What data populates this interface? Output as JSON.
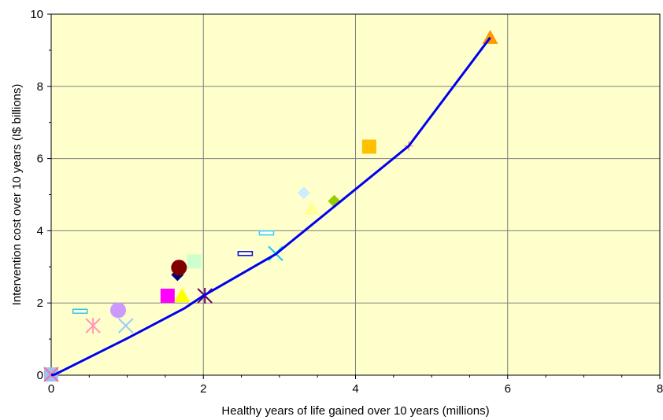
{
  "chart_data": {
    "type": "scatter",
    "title": "",
    "xlabel": "Healthy years of life gained over 10 years (millions)",
    "ylabel": "Intervention cost over 10 years (I$ billions)",
    "xlim": [
      0,
      8
    ],
    "ylim": [
      0,
      10
    ],
    "xticks": [
      "0",
      "2",
      "4",
      "6",
      "8"
    ],
    "yticks": [
      "0",
      "2",
      "4",
      "6",
      "8",
      "10"
    ],
    "grid": true,
    "plot_background": "#FFFFCC",
    "frontier": {
      "color": "#0000EE",
      "points": [
        [
          0,
          0
        ],
        [
          0.05,
          0.02
        ],
        [
          1.0,
          1.02
        ],
        [
          1.75,
          1.85
        ],
        [
          2.0,
          2.2
        ],
        [
          2.95,
          3.35
        ],
        [
          4.7,
          6.35
        ],
        [
          5.77,
          9.35
        ]
      ]
    },
    "points": [
      {
        "x": 0.0,
        "y": 0.02,
        "marker": "square",
        "color": "#9DC3E6"
      },
      {
        "x": 0.0,
        "y": 0.02,
        "marker": "x",
        "color": "#FF66AA"
      },
      {
        "x": 0.38,
        "y": 1.77,
        "marker": "dash-rect",
        "color": "#33CCCC"
      },
      {
        "x": 0.55,
        "y": 1.37,
        "marker": "asterisk",
        "color": "#FF99BB"
      },
      {
        "x": 0.88,
        "y": 1.8,
        "marker": "circle",
        "color": "#CC99FF"
      },
      {
        "x": 0.98,
        "y": 1.37,
        "marker": "x",
        "color": "#99CCFF"
      },
      {
        "x": 1.53,
        "y": 2.2,
        "marker": "square",
        "color": "#FF00FF"
      },
      {
        "x": 1.66,
        "y": 2.78,
        "marker": "diamond",
        "color": "#000080"
      },
      {
        "x": 1.68,
        "y": 2.98,
        "marker": "circle",
        "color": "#800000"
      },
      {
        "x": 1.72,
        "y": 2.2,
        "marker": "triangle",
        "color": "#FFFF00"
      },
      {
        "x": 1.88,
        "y": 3.15,
        "marker": "square",
        "color": "#CCFFCC"
      },
      {
        "x": 2.02,
        "y": 2.2,
        "marker": "asterisk",
        "color": "#660066"
      },
      {
        "x": 2.55,
        "y": 3.37,
        "marker": "dash-rect",
        "color": "#0000CC"
      },
      {
        "x": 2.83,
        "y": 3.94,
        "marker": "dash-rect",
        "color": "#33CCFF"
      },
      {
        "x": 2.95,
        "y": 3.37,
        "marker": "x",
        "color": "#00CCFF"
      },
      {
        "x": 3.32,
        "y": 5.05,
        "marker": "diamond",
        "color": "#CCECFF"
      },
      {
        "x": 3.42,
        "y": 4.62,
        "marker": "triangle",
        "color": "#FFFF99"
      },
      {
        "x": 3.72,
        "y": 4.82,
        "marker": "diamond",
        "color": "#99CC00"
      },
      {
        "x": 4.18,
        "y": 6.33,
        "marker": "square",
        "color": "#FFC000"
      },
      {
        "x": 4.7,
        "y": 6.35,
        "marker": "plus",
        "color": "#FF9999"
      },
      {
        "x": 5.77,
        "y": 9.35,
        "marker": "triangle",
        "color": "#FF9900"
      }
    ]
  }
}
